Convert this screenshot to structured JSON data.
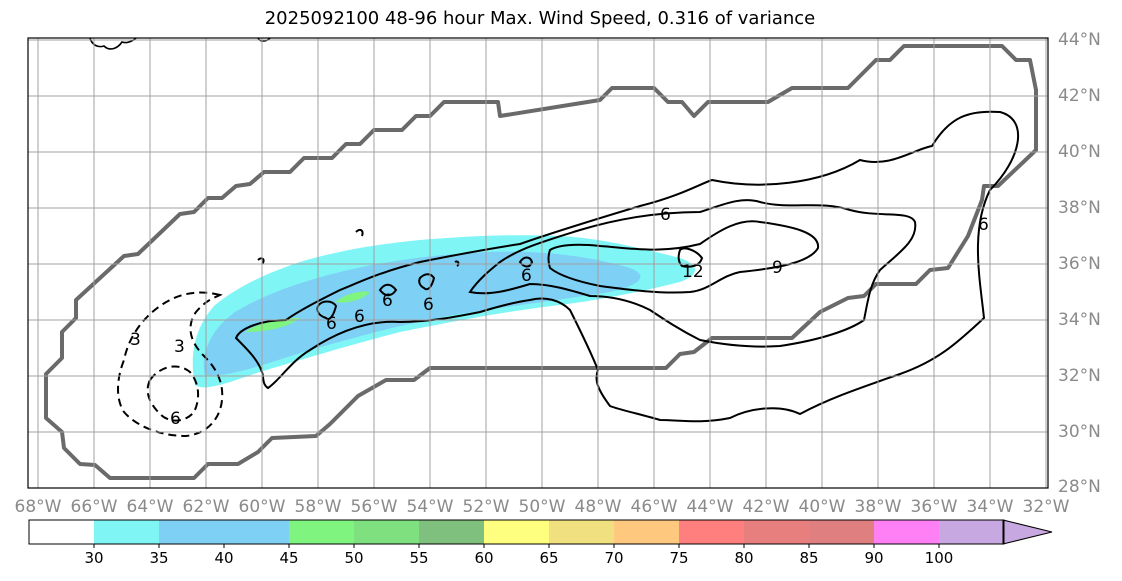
{
  "title": "2025092100 48-96 hour Max. Wind Speed, 0.316 of variance",
  "map": {
    "lon_labels": [
      "68°W",
      "66°W",
      "64°W",
      "62°W",
      "60°W",
      "58°W",
      "56°W",
      "54°W",
      "52°W",
      "50°W",
      "48°W",
      "46°W",
      "44°W",
      "42°W",
      "40°W",
      "38°W",
      "36°W",
      "34°W",
      "32°W"
    ],
    "lat_labels": [
      "44°N",
      "42°N",
      "40°N",
      "38°N",
      "36°N",
      "34°N",
      "32°N",
      "30°N",
      "28°N"
    ],
    "contour_labels": [
      "6",
      "12",
      "9",
      "6",
      "6",
      "6",
      "6",
      "6",
      "6",
      "3",
      "6",
      "3"
    ]
  },
  "colorbar": {
    "tick_labels": [
      "30",
      "35",
      "40",
      "45",
      "50",
      "55",
      "60",
      "65",
      "70",
      "75",
      "80",
      "85",
      "90",
      "100"
    ],
    "colors": [
      "#ffffff",
      "#7ff5f5",
      "#7fd0f5",
      "#7fd0f5",
      "#7ff57f",
      "#7fe07f",
      "#7fc07f",
      "#ffff7f",
      "#f0e07f",
      "#ffc87f",
      "#ff7f7f",
      "#e87f7f",
      "#e07f7f",
      "#ff7ff5",
      "#c8a8e0"
    ]
  }
}
